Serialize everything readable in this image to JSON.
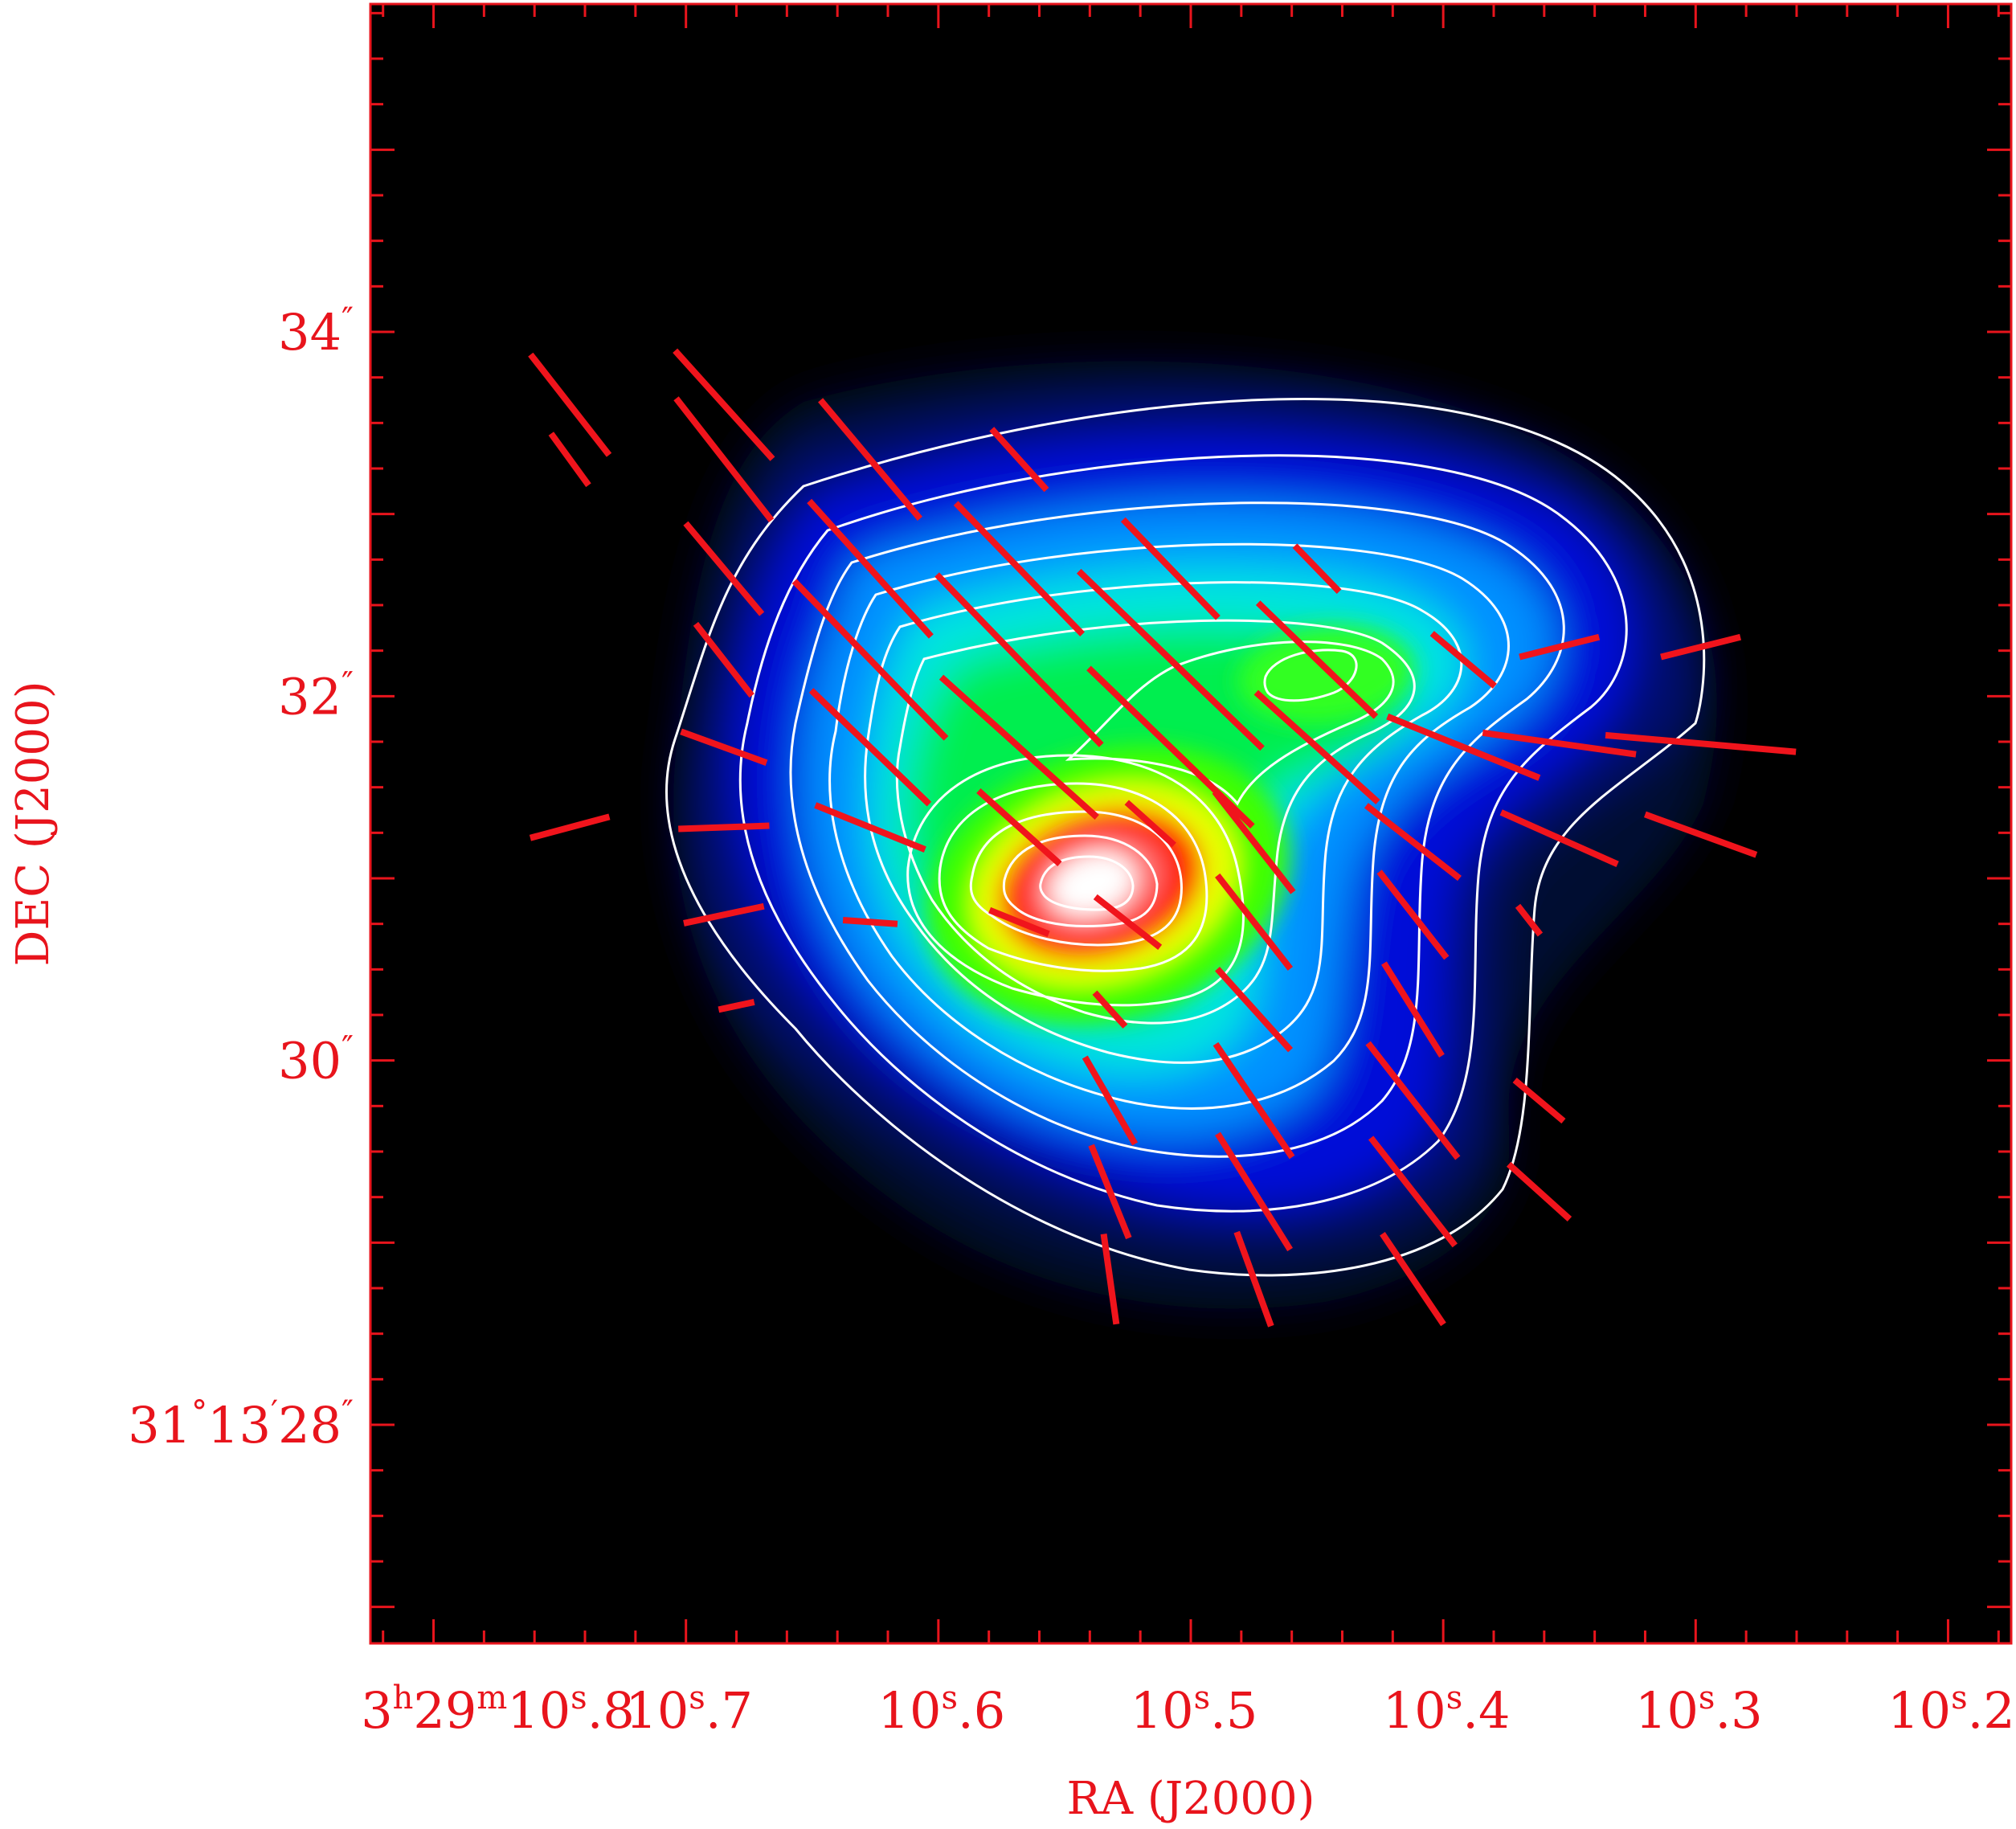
{
  "chart_data": {
    "type": "heatmap",
    "title": "",
    "xlabel": "RA (J2000)",
    "ylabel": "DEC (J2000)",
    "x_axis": {
      "unit": "seconds of RA (3h29m)",
      "range": [
        10.825,
        10.175
      ],
      "ticks": [
        {
          "value": 10.8,
          "parts": [
            [
              "3",
              ""
            ],
            [
              "h",
              "sup"
            ],
            [
              "29",
              ""
            ],
            [
              "m",
              "sup"
            ],
            [
              "10",
              ""
            ],
            [
              "s",
              "sup"
            ],
            [
              ".8",
              ""
            ]
          ]
        },
        {
          "value": 10.7,
          "parts": [
            [
              "10",
              ""
            ],
            [
              "s",
              "sup"
            ],
            [
              ".7",
              ""
            ]
          ]
        },
        {
          "value": 10.6,
          "parts": [
            [
              "10",
              ""
            ],
            [
              "s",
              "sup"
            ],
            [
              ".6",
              ""
            ]
          ]
        },
        {
          "value": 10.5,
          "parts": [
            [
              "10",
              ""
            ],
            [
              "s",
              "sup"
            ],
            [
              ".5",
              ""
            ]
          ]
        },
        {
          "value": 10.4,
          "parts": [
            [
              "10",
              ""
            ],
            [
              "s",
              "sup"
            ],
            [
              ".4",
              ""
            ]
          ]
        },
        {
          "value": 10.3,
          "parts": [
            [
              "10",
              ""
            ],
            [
              "s",
              "sup"
            ],
            [
              ".3",
              ""
            ]
          ]
        },
        {
          "value": 10.2,
          "parts": [
            [
              "10",
              ""
            ],
            [
              "s",
              "sup"
            ],
            [
              ".2",
              ""
            ]
          ]
        }
      ]
    },
    "y_axis": {
      "unit": "arcsec of DEC (31°13')",
      "range": [
        26.8,
        35.8
      ],
      "ticks": [
        {
          "value": 28,
          "parts": [
            [
              "31",
              ""
            ],
            [
              "°",
              "sup"
            ],
            [
              "13",
              ""
            ],
            [
              "′",
              "sup"
            ],
            [
              "28",
              ""
            ],
            [
              "″",
              "sup"
            ]
          ]
        },
        {
          "value": 30,
          "parts": [
            [
              "30",
              ""
            ],
            [
              "″",
              "sup"
            ]
          ]
        },
        {
          "value": 32,
          "parts": [
            [
              "32",
              ""
            ],
            [
              "″",
              "sup"
            ]
          ]
        },
        {
          "value": 34,
          "parts": [
            [
              "34",
              ""
            ],
            [
              "″",
              "sup"
            ]
          ]
        }
      ]
    },
    "colormap": [
      "#000000",
      "#001a8c",
      "#0000ff",
      "#00e5ff",
      "#00ff00",
      "#ffff00",
      "#ff0000",
      "#ffffff"
    ],
    "contour_color": "#ffffff",
    "vector_color": "#f0141c",
    "sources": [
      {
        "name": "main peak",
        "ra_s": 10.535,
        "dec_as": 30.95
      },
      {
        "name": "secondary peak",
        "ra_s": 10.455,
        "dec_as": 32.1
      }
    ],
    "vectors": [
      {
        "ra_s": 10.746,
        "dec_as": 33.6,
        "angle_deg": -52,
        "length_as": 0.7
      },
      {
        "ra_s": 10.685,
        "dec_as": 33.6,
        "angle_deg": -48,
        "length_as": 0.8
      },
      {
        "ra_s": 10.746,
        "dec_as": 33.3,
        "angle_deg": -54,
        "length_as": 0.35
      },
      {
        "ra_s": 10.685,
        "dec_as": 33.3,
        "angle_deg": -52,
        "length_as": 0.85
      },
      {
        "ra_s": 10.627,
        "dec_as": 33.3,
        "angle_deg": -50,
        "length_as": 0.85
      },
      {
        "ra_s": 10.568,
        "dec_as": 33.3,
        "angle_deg": -48,
        "length_as": 0.45
      },
      {
        "ra_s": 10.685,
        "dec_as": 32.7,
        "angle_deg": -50,
        "length_as": 0.65
      },
      {
        "ra_s": 10.627,
        "dec_as": 32.7,
        "angle_deg": -48,
        "length_as": 1.0
      },
      {
        "ra_s": 10.568,
        "dec_as": 32.7,
        "angle_deg": -46,
        "length_as": 1.0
      },
      {
        "ra_s": 10.508,
        "dec_as": 32.7,
        "angle_deg": -46,
        "length_as": 0.75
      },
      {
        "ra_s": 10.45,
        "dec_as": 32.7,
        "angle_deg": -46,
        "length_as": 0.35
      },
      {
        "ra_s": 10.685,
        "dec_as": 32.2,
        "angle_deg": -52,
        "length_as": 0.5
      },
      {
        "ra_s": 10.627,
        "dec_as": 32.2,
        "angle_deg": -46,
        "length_as": 1.2
      },
      {
        "ra_s": 10.568,
        "dec_as": 32.2,
        "angle_deg": -46,
        "length_as": 1.3
      },
      {
        "ra_s": 10.508,
        "dec_as": 32.2,
        "angle_deg": -44,
        "length_as": 1.4
      },
      {
        "ra_s": 10.45,
        "dec_as": 32.2,
        "angle_deg": -44,
        "length_as": 0.9
      },
      {
        "ra_s": 10.392,
        "dec_as": 32.2,
        "angle_deg": -40,
        "length_as": 0.45
      },
      {
        "ra_s": 10.354,
        "dec_as": 32.27,
        "angle_deg": 14,
        "length_as": 0.45
      },
      {
        "ra_s": 10.298,
        "dec_as": 32.27,
        "angle_deg": 14,
        "length_as": 0.45
      },
      {
        "ra_s": 10.685,
        "dec_as": 31.72,
        "angle_deg": -20,
        "length_as": 0.5
      },
      {
        "ra_s": 10.627,
        "dec_as": 31.72,
        "angle_deg": -44,
        "length_as": 0.9
      },
      {
        "ra_s": 10.568,
        "dec_as": 31.72,
        "angle_deg": -42,
        "length_as": 1.15
      },
      {
        "ra_s": 10.508,
        "dec_as": 31.72,
        "angle_deg": -44,
        "length_as": 1.25
      },
      {
        "ra_s": 10.45,
        "dec_as": 31.72,
        "angle_deg": -42,
        "length_as": 0.9
      },
      {
        "ra_s": 10.392,
        "dec_as": 31.72,
        "angle_deg": -22,
        "length_as": 0.9
      },
      {
        "ra_s": 10.354,
        "dec_as": 31.74,
        "angle_deg": -8,
        "length_as": 0.85
      },
      {
        "ra_s": 10.298,
        "dec_as": 31.74,
        "angle_deg": -5,
        "length_as": 1.05
      },
      {
        "ra_s": 10.746,
        "dec_as": 31.28,
        "angle_deg": 15,
        "length_as": 0.45
      },
      {
        "ra_s": 10.685,
        "dec_as": 31.28,
        "angle_deg": 2,
        "length_as": 0.5
      },
      {
        "ra_s": 10.627,
        "dec_as": 31.28,
        "angle_deg": -22,
        "length_as": 0.65
      },
      {
        "ra_s": 10.568,
        "dec_as": 31.28,
        "angle_deg": -42,
        "length_as": 0.6
      },
      {
        "ra_s": 10.516,
        "dec_as": 31.3,
        "angle_deg": -42,
        "length_as": 0.35
      },
      {
        "ra_s": 10.475,
        "dec_as": 31.2,
        "angle_deg": -52,
        "length_as": 0.7
      },
      {
        "ra_s": 10.412,
        "dec_as": 31.2,
        "angle_deg": -38,
        "length_as": 0.65
      },
      {
        "ra_s": 10.354,
        "dec_as": 31.22,
        "angle_deg": -24,
        "length_as": 0.7
      },
      {
        "ra_s": 10.298,
        "dec_as": 31.24,
        "angle_deg": -20,
        "length_as": 0.65
      },
      {
        "ra_s": 10.685,
        "dec_as": 30.8,
        "angle_deg": 12,
        "length_as": 0.45
      },
      {
        "ra_s": 10.627,
        "dec_as": 30.76,
        "angle_deg": -4,
        "length_as": 0.3
      },
      {
        "ra_s": 10.568,
        "dec_as": 30.76,
        "angle_deg": -22,
        "length_as": 0.35
      },
      {
        "ra_s": 10.525,
        "dec_as": 30.76,
        "angle_deg": -38,
        "length_as": 0.45
      },
      {
        "ra_s": 10.475,
        "dec_as": 30.76,
        "angle_deg": -52,
        "length_as": 0.65
      },
      {
        "ra_s": 10.412,
        "dec_as": 30.8,
        "angle_deg": -52,
        "length_as": 0.6
      },
      {
        "ra_s": 10.366,
        "dec_as": 30.77,
        "angle_deg": -52,
        "length_as": 0.2
      },
      {
        "ra_s": 10.68,
        "dec_as": 30.3,
        "angle_deg": 12,
        "length_as": 0.2
      },
      {
        "ra_s": 10.532,
        "dec_as": 30.28,
        "angle_deg": -48,
        "length_as": 0.25
      },
      {
        "ra_s": 10.475,
        "dec_as": 30.28,
        "angle_deg": -48,
        "length_as": 0.6
      },
      {
        "ra_s": 10.412,
        "dec_as": 30.28,
        "angle_deg": -58,
        "length_as": 0.6
      },
      {
        "ra_s": 10.532,
        "dec_as": 29.78,
        "angle_deg": -60,
        "length_as": 0.55
      },
      {
        "ra_s": 10.475,
        "dec_as": 29.78,
        "angle_deg": -56,
        "length_as": 0.75
      },
      {
        "ra_s": 10.412,
        "dec_as": 29.78,
        "angle_deg": -52,
        "length_as": 0.8
      },
      {
        "ra_s": 10.362,
        "dec_as": 29.78,
        "angle_deg": -40,
        "length_as": 0.35
      },
      {
        "ra_s": 10.532,
        "dec_as": 29.28,
        "angle_deg": -68,
        "length_as": 0.55
      },
      {
        "ra_s": 10.475,
        "dec_as": 29.28,
        "angle_deg": -58,
        "length_as": 0.75
      },
      {
        "ra_s": 10.412,
        "dec_as": 29.28,
        "angle_deg": -52,
        "length_as": 0.75
      },
      {
        "ra_s": 10.362,
        "dec_as": 29.28,
        "angle_deg": -42,
        "length_as": 0.45
      },
      {
        "ra_s": 10.532,
        "dec_as": 28.8,
        "angle_deg": -82,
        "length_as": 0.5
      },
      {
        "ra_s": 10.475,
        "dec_as": 28.8,
        "angle_deg": -70,
        "length_as": 0.55
      },
      {
        "ra_s": 10.412,
        "dec_as": 28.8,
        "angle_deg": -56,
        "length_as": 0.6
      }
    ]
  }
}
